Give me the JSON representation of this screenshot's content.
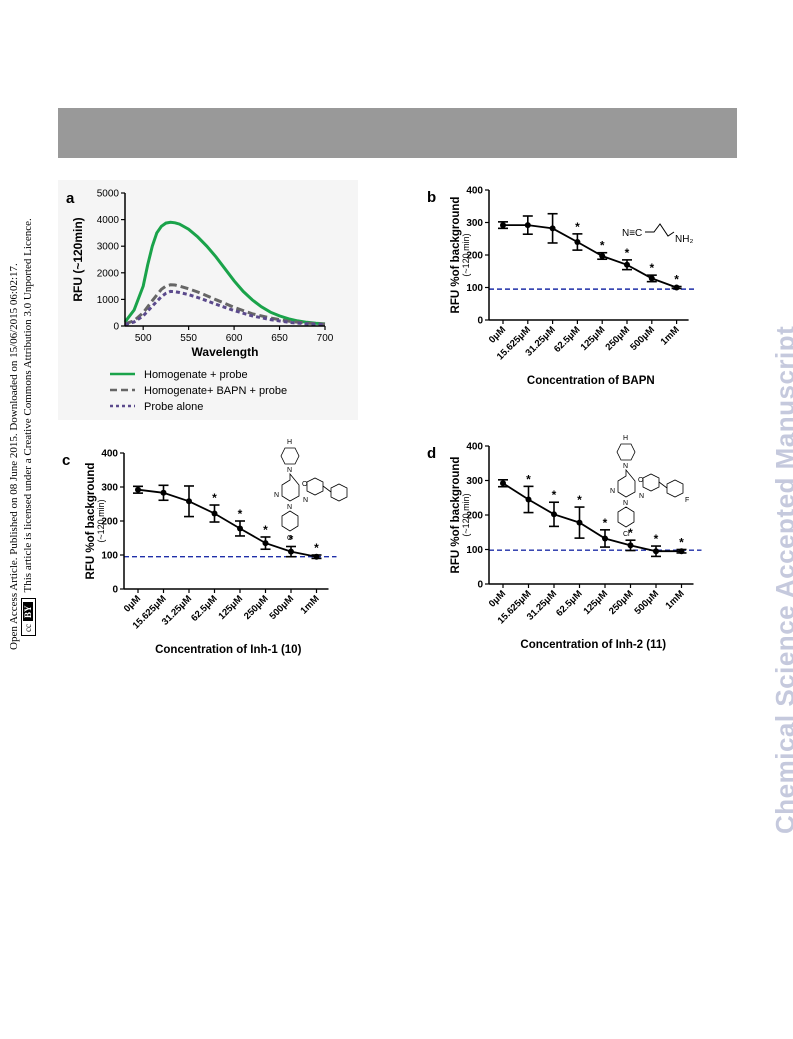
{
  "page": {
    "access_line": "Open Access Article. Published on 08 June 2015. Downloaded on 15/06/2015 06:02:17.",
    "licence_line": "This article is licensed under a Creative Commons Attribution 3.0 Unported Licence.",
    "cc_badge": "cc",
    "cc_by": "BY",
    "watermark": "Chemical Science Accepted Manuscript"
  },
  "colors": {
    "green": "#1aa34a",
    "gray": "#666666",
    "purple": "#5b4a8c",
    "baseline": "#1f2fa8"
  },
  "chart_data": [
    {
      "panel": "a",
      "type": "line",
      "xlabel": "Wavelength",
      "ylabel": "RFU (~120min)",
      "xlim": [
        480,
        700
      ],
      "ylim": [
        0,
        5000
      ],
      "xticks": [
        500,
        550,
        600,
        650,
        700
      ],
      "yticks": [
        0,
        1000,
        2000,
        3000,
        4000,
        5000
      ],
      "legend_position": "bottom",
      "series": [
        {
          "name": "Homogenate + probe",
          "color": "#1aa34a",
          "dash": "solid",
          "x": [
            480,
            490,
            500,
            505,
            510,
            515,
            520,
            525,
            530,
            535,
            540,
            550,
            560,
            570,
            580,
            590,
            600,
            610,
            620,
            630,
            640,
            650,
            660,
            670,
            680,
            690,
            700
          ],
          "y": [
            150,
            600,
            1500,
            2300,
            3000,
            3500,
            3750,
            3870,
            3900,
            3880,
            3830,
            3640,
            3350,
            3000,
            2600,
            2150,
            1700,
            1300,
            980,
            720,
            520,
            380,
            270,
            190,
            140,
            100,
            80
          ]
        },
        {
          "name": "Homogenate+ BAPN + probe",
          "color": "#666666",
          "dash": "dashed",
          "x": [
            480,
            490,
            500,
            510,
            520,
            525,
            530,
            535,
            540,
            550,
            560,
            570,
            580,
            590,
            600,
            620,
            640,
            660,
            680,
            700
          ],
          "y": [
            80,
            200,
            500,
            950,
            1380,
            1500,
            1550,
            1540,
            1500,
            1400,
            1280,
            1140,
            990,
            850,
            700,
            460,
            300,
            180,
            110,
            70
          ]
        },
        {
          "name": "Probe alone",
          "color": "#5b4a8c",
          "dash": "dotted",
          "x": [
            480,
            490,
            500,
            510,
            520,
            525,
            530,
            535,
            540,
            550,
            560,
            570,
            580,
            590,
            600,
            620,
            640,
            660,
            680,
            700
          ],
          "y": [
            50,
            150,
            380,
            750,
            1100,
            1230,
            1300,
            1290,
            1260,
            1180,
            1070,
            950,
            820,
            700,
            580,
            380,
            240,
            140,
            80,
            50
          ]
        }
      ]
    },
    {
      "panel": "b",
      "type": "line",
      "xlabel": "Concentration of BAPN",
      "ylabel": "RFU %of background",
      "ylabel2": "(~120 min)",
      "ylim": [
        0,
        400
      ],
      "yticks": [
        0,
        100,
        200,
        300,
        400
      ],
      "categories": [
        "0μM",
        "15.625μM",
        "31.25μM",
        "62.5μM",
        "125μM",
        "250μM",
        "500μM",
        "1mM"
      ],
      "values": [
        292,
        292,
        282,
        240,
        197,
        170,
        128,
        100
      ],
      "errors": [
        10,
        28,
        45,
        25,
        10,
        15,
        10,
        3
      ],
      "significant": [
        "",
        "",
        "",
        "*",
        "*",
        "*",
        "*",
        "*"
      ],
      "baseline": 95,
      "structure_labels": [
        "N≡C",
        "NH₂"
      ]
    },
    {
      "panel": "c",
      "type": "line",
      "xlabel": "Concentration of Inh-1 (10)",
      "ylabel": "RFU %of background",
      "ylabel2": "(~120 min)",
      "ylim": [
        0,
        400
      ],
      "yticks": [
        0,
        100,
        200,
        300,
        400
      ],
      "categories": [
        "0μM",
        "15.625μM",
        "31.25μM",
        "62.5μM",
        "125μM",
        "250μM",
        "500μM",
        "1mM"
      ],
      "values": [
        292,
        283,
        258,
        222,
        178,
        135,
        110,
        95
      ],
      "errors": [
        10,
        22,
        45,
        25,
        22,
        18,
        15,
        5
      ],
      "significant": [
        "",
        "",
        "",
        "*",
        "*",
        "*",
        "*",
        "*"
      ],
      "baseline": 95,
      "structure_labels": [
        "H",
        "N",
        "N",
        "O",
        "N",
        "N",
        "O",
        "Cl"
      ]
    },
    {
      "panel": "d",
      "type": "line",
      "xlabel": "Concentration of Inh-2 (11)",
      "ylabel": "RFU %of background",
      "ylabel2": "(~120 min)",
      "ylim": [
        0,
        400
      ],
      "yticks": [
        0,
        100,
        200,
        300,
        400
      ],
      "categories": [
        "0μM",
        "15.625μM",
        "31.25μM",
        "62.5μM",
        "125μM",
        "250μM",
        "500μM",
        "1mM"
      ],
      "values": [
        292,
        245,
        202,
        178,
        132,
        112,
        95,
        95
      ],
      "errors": [
        10,
        38,
        35,
        45,
        25,
        15,
        15,
        5
      ],
      "significant": [
        "",
        "*",
        "*",
        "*",
        "*",
        "*",
        "*",
        "*"
      ],
      "baseline": 98,
      "structure_labels": [
        "H",
        "N",
        "N",
        "O",
        "N",
        "N",
        "O",
        "Cl",
        "F"
      ]
    }
  ]
}
